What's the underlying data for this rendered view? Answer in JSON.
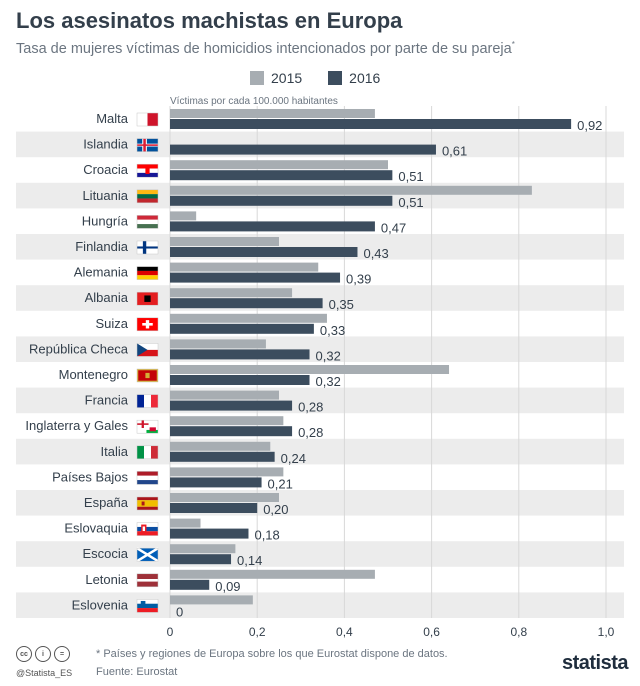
{
  "title": "Los asesinatos machistas en Europa",
  "subtitle": "Tasa de mujeres víctimas de homicidios intencionados por parte de su pareja",
  "subtitle_mark": "*",
  "colors": {
    "s2015": "#a7adb2",
    "s2016": "#3c4d5e",
    "stripe": "#ececec",
    "text": "#333f4b"
  },
  "chart_data": {
    "type": "bar",
    "orientation": "horizontal",
    "title": "Los asesinatos machistas en Europa",
    "unit_label": "Víctimas por cada 100.000 habitantes",
    "categories": [
      "Malta",
      "Islandia",
      "Croacia",
      "Lituania",
      "Hungría",
      "Finlandia",
      "Alemania",
      "Albania",
      "Suiza",
      "República Checa",
      "Montenegro",
      "Francia",
      "Inglaterra y Gales",
      "Italia",
      "Países Bajos",
      "España",
      "Eslovaquia",
      "Escocia",
      "Letonia",
      "Eslovenia"
    ],
    "series": [
      {
        "name": "2015",
        "values": [
          0.47,
          0,
          0.5,
          0.83,
          0.06,
          0.25,
          0.34,
          0.28,
          0.36,
          0.22,
          0.64,
          0.25,
          0.26,
          0.23,
          0.26,
          0.25,
          0.07,
          0.15,
          0.47,
          0.19
        ]
      },
      {
        "name": "2016",
        "values": [
          0.92,
          0.61,
          0.51,
          0.51,
          0.47,
          0.43,
          0.39,
          0.35,
          0.33,
          0.32,
          0.32,
          0.28,
          0.28,
          0.24,
          0.21,
          0.2,
          0.18,
          0.14,
          0.09,
          0
        ]
      }
    ],
    "value_labels": [
      "0,92",
      "0,61",
      "0,51",
      "0,51",
      "0,47",
      "0,43",
      "0,39",
      "0,35",
      "0,33",
      "0,32",
      "0,32",
      "0,28",
      "0,28",
      "0,24",
      "0,21",
      "0,20",
      "0,18",
      "0,14",
      "0,09",
      "0"
    ],
    "xlim": [
      0,
      1.0
    ],
    "xticks": [
      0,
      0.2,
      0.4,
      0.6,
      0.8,
      1.0
    ],
    "xtick_labels": [
      "0",
      "0,2",
      "0,4",
      "0,6",
      "0,8",
      "1,0"
    ]
  },
  "flags": [
    "malta",
    "iceland",
    "croatia",
    "lithuania",
    "hungary",
    "finland",
    "germany",
    "albania",
    "switzerland",
    "czech",
    "montenegro",
    "france",
    "england-wales",
    "italy",
    "netherlands",
    "spain",
    "slovakia",
    "scotland",
    "latvia",
    "slovenia"
  ],
  "footer": {
    "note": "* Países y regiones de Europa sobre los que Eurostat dispone de datos.",
    "source": "Fuente: Eurostat",
    "handle": "@Statista_ES",
    "brand": "statista"
  }
}
